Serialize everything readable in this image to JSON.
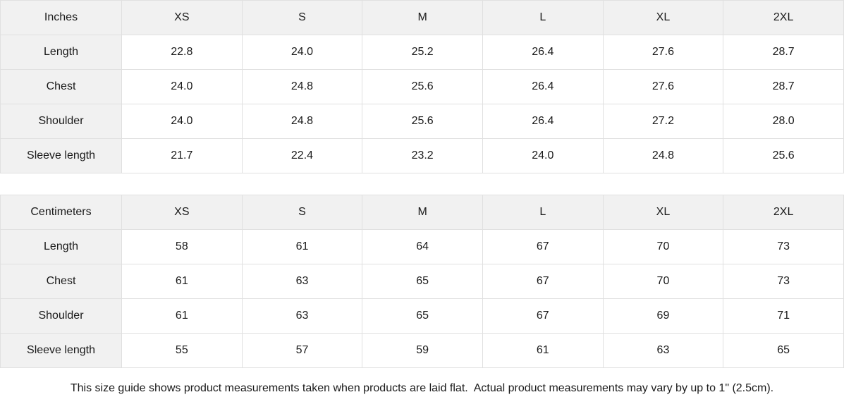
{
  "colors": {
    "header_bg": "#f1f1f1",
    "label_bg": "#f1f1f1",
    "border": "#e0e0e0",
    "cell_bg": "#ffffff",
    "text": "#1a1a1a"
  },
  "size_guide": {
    "tables": [
      {
        "unit_label": "Inches",
        "columns": [
          "XS",
          "S",
          "M",
          "L",
          "XL",
          "2XL"
        ],
        "rows": [
          {
            "label": "Length",
            "values": [
              "22.8",
              "24.0",
              "25.2",
              "26.4",
              "27.6",
              "28.7"
            ]
          },
          {
            "label": "Chest",
            "values": [
              "24.0",
              "24.8",
              "25.6",
              "26.4",
              "27.6",
              "28.7"
            ]
          },
          {
            "label": "Shoulder",
            "values": [
              "24.0",
              "24.8",
              "25.6",
              "26.4",
              "27.2",
              "28.0"
            ]
          },
          {
            "label": "Sleeve length",
            "values": [
              "21.7",
              "22.4",
              "23.2",
              "24.0",
              "24.8",
              "25.6"
            ]
          }
        ]
      },
      {
        "unit_label": "Centimeters",
        "columns": [
          "XS",
          "S",
          "M",
          "L",
          "XL",
          "2XL"
        ],
        "rows": [
          {
            "label": "Length",
            "values": [
              "58",
              "61",
              "64",
              "67",
              "70",
              "73"
            ]
          },
          {
            "label": "Chest",
            "values": [
              "61",
              "63",
              "65",
              "67",
              "70",
              "73"
            ]
          },
          {
            "label": "Shoulder",
            "values": [
              "61",
              "63",
              "65",
              "67",
              "69",
              "71"
            ]
          },
          {
            "label": "Sleeve length",
            "values": [
              "55",
              "57",
              "59",
              "61",
              "63",
              "65"
            ]
          }
        ]
      }
    ],
    "footnote": "This size guide shows product measurements taken when products are laid flat.  Actual product measurements may vary by up to 1\" (2.5cm)."
  }
}
